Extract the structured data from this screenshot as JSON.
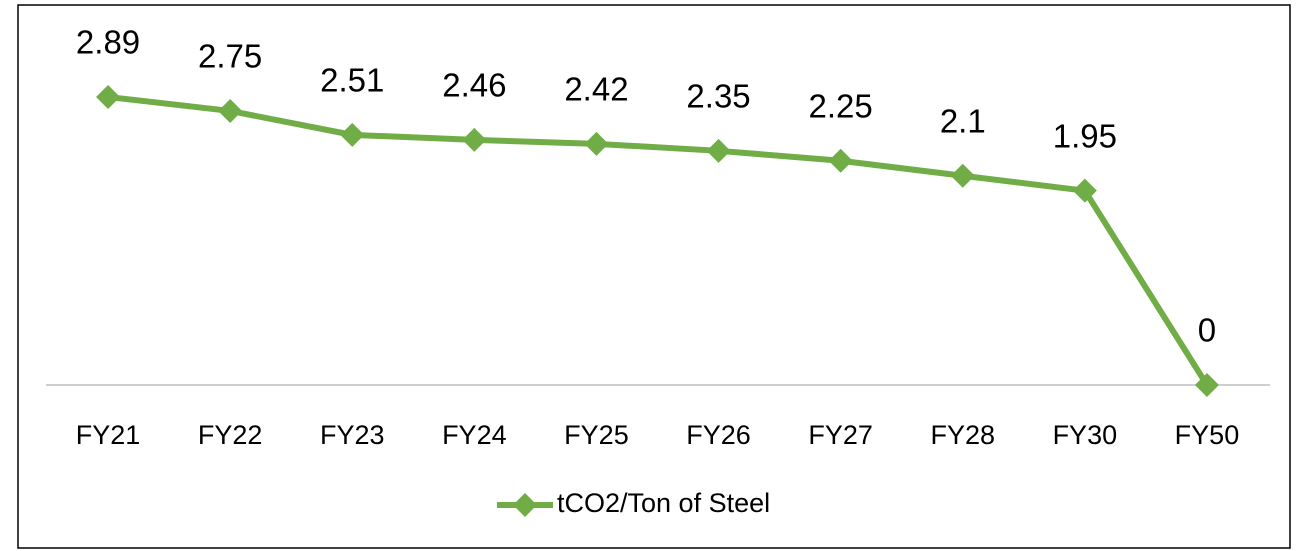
{
  "chart_data": {
    "type": "line",
    "categories": [
      "FY21",
      "FY22",
      "FY23",
      "FY24",
      "FY25",
      "FY26",
      "FY27",
      "FY28",
      "FY30",
      "FY50"
    ],
    "series": [
      {
        "name": "tCO2/Ton of Steel",
        "color": "#70ad47",
        "values": [
          2.89,
          2.75,
          2.51,
          2.46,
          2.42,
          2.35,
          2.25,
          2.1,
          1.95,
          0
        ]
      }
    ]
  }
}
